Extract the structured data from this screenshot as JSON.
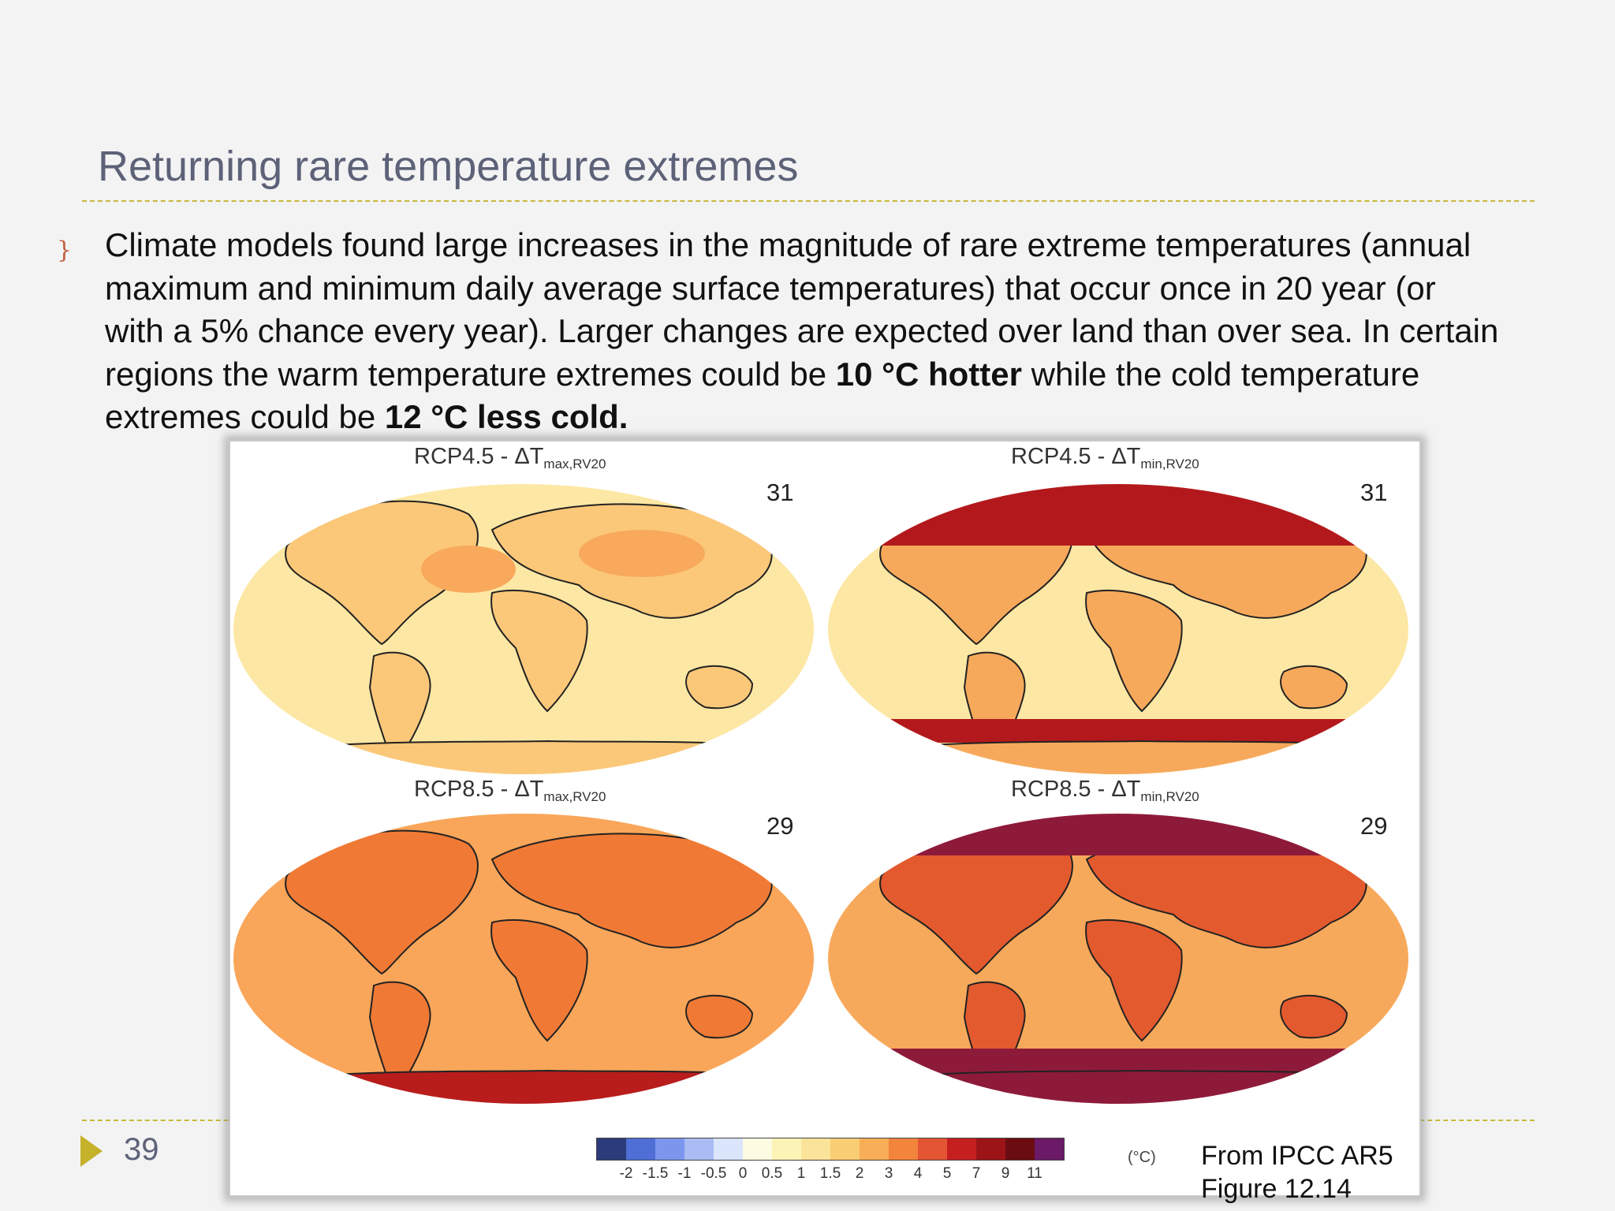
{
  "slide": {
    "title": "Returning rare temperature extremes",
    "body": {
      "seg1": "Climate models found large increases in the magnitude of rare extreme temperatures (annual maximum and minimum daily average surface temperatures) that occur once in 20 year (or with a 5% chance every year). Larger changes are expected over land than over sea. In certain regions the warm temperature extremes could be ",
      "bold1": "10 °C hotter",
      "seg2": " while the cold temperature extremes could be ",
      "bold2": "12 °C less cold."
    },
    "page_number": "39",
    "source_line1": "From IPCC AR5",
    "source_line2": "Figure 12.14",
    "accent_color": "#c5b12a",
    "title_color": "#5d6278"
  },
  "figure": {
    "panels": [
      {
        "scenario": "RCP4.5 - ΔT",
        "subscript": "max,RV20",
        "count": "31",
        "palette": [
          "#fde7a4",
          "#fbc879",
          "#f8a95c"
        ]
      },
      {
        "scenario": "RCP4.5 - ΔT",
        "subscript": "min,RV20",
        "count": "31",
        "palette": [
          "#fde7a4",
          "#f7a95b",
          "#b3191c"
        ]
      },
      {
        "scenario": "RCP8.5 - ΔT",
        "subscript": "max,RV20",
        "count": "29",
        "palette": [
          "#f9a65a",
          "#f07a35",
          "#b81d1c"
        ]
      },
      {
        "scenario": "RCP8.5 - ΔT",
        "subscript": "min,RV20",
        "count": "29",
        "palette": [
          "#f7a95b",
          "#e35a2e",
          "#8e1a3a"
        ]
      }
    ],
    "colorbar": {
      "ticks": [
        "-2",
        "-1.5",
        "-1",
        "-0.5",
        "0",
        "0.5",
        "1",
        "1.5",
        "2",
        "3",
        "4",
        "5",
        "7",
        "9",
        "11"
      ],
      "colors": [
        "#2c3c7a",
        "#4f6fd6",
        "#7c96ee",
        "#a9bdf4",
        "#dbe5fb",
        "#fdfbe2",
        "#fcf4b6",
        "#fbe39a",
        "#f9cd72",
        "#f8ae57",
        "#f2843c",
        "#e45533",
        "#c61f20",
        "#9c1418",
        "#6b0d10",
        "#6a1a66"
      ],
      "unit": "(°C)"
    }
  }
}
